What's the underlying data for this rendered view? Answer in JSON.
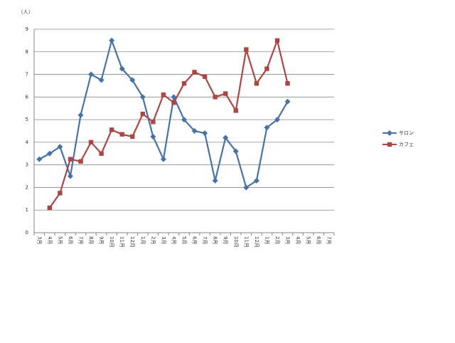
{
  "chart_data": {
    "type": "line",
    "ylabel": "（人）",
    "categories": [
      "3月",
      "4月",
      "5月",
      "6月",
      "7月",
      "8月",
      "9月",
      "10月",
      "11月",
      "12月",
      "1月",
      "2月",
      "3月",
      "4月",
      "5月",
      "6月",
      "7月",
      "8月",
      "9月",
      "10月",
      "11月",
      "12月",
      "1月",
      "2月",
      "3月",
      "4月",
      "5月",
      "6月",
      "7月"
    ],
    "series": [
      {
        "name": "サロン",
        "color": "#4572a7",
        "marker": "diamond",
        "values": [
          3.25,
          3.5,
          3.8,
          2.5,
          5.2,
          7.0,
          6.75,
          8.5,
          7.25,
          6.75,
          6.0,
          4.25,
          3.25,
          6.0,
          5.0,
          4.5,
          4.4,
          2.3,
          4.2,
          3.6,
          2.0,
          2.3,
          4.65,
          5.0,
          5.8,
          null,
          null,
          null,
          null
        ]
      },
      {
        "name": "カフェ",
        "color": "#aa4643",
        "marker": "square",
        "values": [
          null,
          1.1,
          1.75,
          3.25,
          3.15,
          4.0,
          3.5,
          4.55,
          4.35,
          4.25,
          5.25,
          4.9,
          6.1,
          5.75,
          6.6,
          7.1,
          6.9,
          6.0,
          6.15,
          5.4,
          8.1,
          6.6,
          7.25,
          8.5,
          6.6,
          null,
          null,
          null,
          null
        ]
      }
    ],
    "ylim": [
      0,
      9
    ],
    "yticks": [
      0,
      1,
      2,
      3,
      4,
      5,
      6,
      7,
      8,
      9
    ],
    "grid": true,
    "legend": "right"
  }
}
